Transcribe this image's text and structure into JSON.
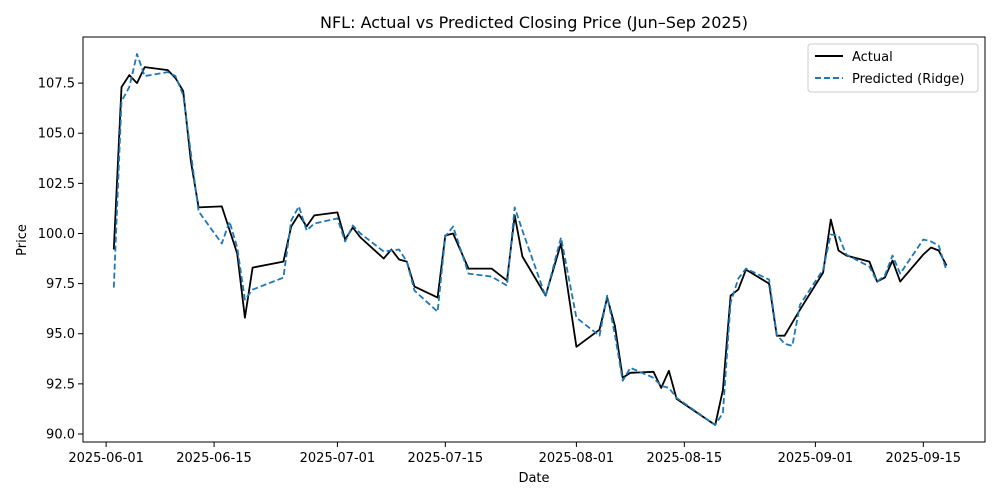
{
  "chart_data": {
    "type": "line",
    "title": "NFL: Actual vs Predicted Closing Price (Jun–Sep 2025)",
    "xlabel": "Date",
    "ylabel": "Price",
    "x_ticks": [
      "2025-06-01",
      "2025-06-15",
      "2025-07-01",
      "2025-07-15",
      "2025-08-01",
      "2025-08-15",
      "2025-09-01",
      "2025-09-15"
    ],
    "y_ticks": [
      "90.0",
      "92.5",
      "95.0",
      "97.5",
      "100.0",
      "102.5",
      "105.0",
      "107.5"
    ],
    "xlim": [
      "2025-05-29",
      "2025-09-23"
    ],
    "ylim": [
      89.6,
      109.8
    ],
    "grid": false,
    "legend_position": "top-right",
    "series": [
      {
        "name": "Actual",
        "color": "#000000",
        "style": "solid",
        "points": [
          [
            "2025-06-02",
            99.2
          ],
          [
            "2025-06-03",
            107.3
          ],
          [
            "2025-06-04",
            107.9
          ],
          [
            "2025-06-05",
            107.5
          ],
          [
            "2025-06-06",
            108.3
          ],
          [
            "2025-06-09",
            108.15
          ],
          [
            "2025-06-10",
            107.75
          ],
          [
            "2025-06-11",
            107.1
          ],
          [
            "2025-06-12",
            103.6
          ],
          [
            "2025-06-13",
            101.3
          ],
          [
            "2025-06-16",
            101.35
          ],
          [
            "2025-06-18",
            99.0
          ],
          [
            "2025-06-19",
            95.8
          ],
          [
            "2025-06-20",
            98.3
          ],
          [
            "2025-06-24",
            98.6
          ],
          [
            "2025-06-25",
            100.35
          ],
          [
            "2025-06-26",
            100.95
          ],
          [
            "2025-06-27",
            100.35
          ],
          [
            "2025-06-28",
            100.9
          ],
          [
            "2025-07-01",
            101.05
          ],
          [
            "2025-07-02",
            99.7
          ],
          [
            "2025-07-03",
            100.3
          ],
          [
            "2025-07-04",
            99.8
          ],
          [
            "2025-07-07",
            98.75
          ],
          [
            "2025-07-08",
            99.2
          ],
          [
            "2025-07-09",
            98.7
          ],
          [
            "2025-07-10",
            98.6
          ],
          [
            "2025-07-11",
            97.35
          ],
          [
            "2025-07-14",
            96.8
          ],
          [
            "2025-07-15",
            99.9
          ],
          [
            "2025-07-16",
            100.0
          ],
          [
            "2025-07-18",
            98.25
          ],
          [
            "2025-07-21",
            98.25
          ],
          [
            "2025-07-23",
            97.65
          ],
          [
            "2025-07-24",
            100.9
          ],
          [
            "2025-07-25",
            98.85
          ],
          [
            "2025-07-28",
            96.9
          ],
          [
            "2025-07-30",
            99.5
          ],
          [
            "2025-08-01",
            94.35
          ],
          [
            "2025-08-04",
            95.2
          ],
          [
            "2025-08-05",
            96.8
          ],
          [
            "2025-08-06",
            95.4
          ],
          [
            "2025-08-07",
            92.8
          ],
          [
            "2025-08-08",
            93.05
          ],
          [
            "2025-08-11",
            93.1
          ],
          [
            "2025-08-12",
            92.3
          ],
          [
            "2025-08-13",
            93.15
          ],
          [
            "2025-08-14",
            91.75
          ],
          [
            "2025-08-19",
            90.45
          ],
          [
            "2025-08-20",
            92.2
          ],
          [
            "2025-08-21",
            96.9
          ],
          [
            "2025-08-22",
            97.2
          ],
          [
            "2025-08-23",
            98.2
          ],
          [
            "2025-08-26",
            97.5
          ],
          [
            "2025-08-27",
            94.9
          ],
          [
            "2025-08-28",
            94.9
          ],
          [
            "2025-08-30",
            96.2
          ],
          [
            "2025-09-02",
            98.05
          ],
          [
            "2025-09-03",
            100.7
          ],
          [
            "2025-09-04",
            99.15
          ],
          [
            "2025-09-05",
            98.9
          ],
          [
            "2025-09-08",
            98.6
          ],
          [
            "2025-09-09",
            97.6
          ],
          [
            "2025-09-10",
            97.8
          ],
          [
            "2025-09-11",
            98.65
          ],
          [
            "2025-09-12",
            97.6
          ],
          [
            "2025-09-15",
            98.95
          ],
          [
            "2025-09-16",
            99.3
          ],
          [
            "2025-09-17",
            99.15
          ],
          [
            "2025-09-18",
            98.4
          ]
        ]
      },
      {
        "name": "Predicted (Ridge)",
        "color": "#1f77b4",
        "style": "dashed",
        "points": [
          [
            "2025-06-02",
            97.3
          ],
          [
            "2025-06-03",
            106.6
          ],
          [
            "2025-06-04",
            107.3
          ],
          [
            "2025-06-05",
            108.95
          ],
          [
            "2025-06-06",
            107.85
          ],
          [
            "2025-06-09",
            108.05
          ],
          [
            "2025-06-10",
            107.85
          ],
          [
            "2025-06-11",
            106.9
          ],
          [
            "2025-06-12",
            104.0
          ],
          [
            "2025-06-13",
            101.1
          ],
          [
            "2025-06-16",
            99.5
          ],
          [
            "2025-06-17",
            100.6
          ],
          [
            "2025-06-18",
            99.3
          ],
          [
            "2025-06-19",
            96.7
          ],
          [
            "2025-06-20",
            97.2
          ],
          [
            "2025-06-24",
            97.8
          ],
          [
            "2025-06-25",
            100.65
          ],
          [
            "2025-06-26",
            101.35
          ],
          [
            "2025-06-27",
            100.15
          ],
          [
            "2025-06-28",
            100.5
          ],
          [
            "2025-07-01",
            100.75
          ],
          [
            "2025-07-02",
            99.6
          ],
          [
            "2025-07-03",
            100.4
          ],
          [
            "2025-07-04",
            100.0
          ],
          [
            "2025-07-07",
            99.1
          ],
          [
            "2025-07-08",
            99.15
          ],
          [
            "2025-07-09",
            99.2
          ],
          [
            "2025-07-10",
            98.6
          ],
          [
            "2025-07-11",
            97.15
          ],
          [
            "2025-07-14",
            96.1
          ],
          [
            "2025-07-15",
            99.85
          ],
          [
            "2025-07-16",
            100.35
          ],
          [
            "2025-07-18",
            98.0
          ],
          [
            "2025-07-21",
            97.85
          ],
          [
            "2025-07-23",
            97.4
          ],
          [
            "2025-07-24",
            101.3
          ],
          [
            "2025-07-25",
            100.15
          ],
          [
            "2025-07-28",
            96.85
          ],
          [
            "2025-07-30",
            99.8
          ],
          [
            "2025-08-01",
            95.8
          ],
          [
            "2025-08-04",
            94.9
          ],
          [
            "2025-08-05",
            96.9
          ],
          [
            "2025-08-06",
            94.95
          ],
          [
            "2025-08-07",
            92.65
          ],
          [
            "2025-08-08",
            93.3
          ],
          [
            "2025-08-11",
            92.8
          ],
          [
            "2025-08-12",
            92.4
          ],
          [
            "2025-08-13",
            92.3
          ],
          [
            "2025-08-14",
            91.8
          ],
          [
            "2025-08-19",
            90.45
          ],
          [
            "2025-08-20",
            91.05
          ],
          [
            "2025-08-21",
            96.55
          ],
          [
            "2025-08-22",
            97.75
          ],
          [
            "2025-08-23",
            98.25
          ],
          [
            "2025-08-26",
            97.7
          ],
          [
            "2025-08-27",
            94.95
          ],
          [
            "2025-08-28",
            94.5
          ],
          [
            "2025-08-29",
            94.4
          ],
          [
            "2025-08-30",
            96.45
          ],
          [
            "2025-09-02",
            98.2
          ],
          [
            "2025-09-03",
            99.95
          ],
          [
            "2025-09-04",
            99.9
          ],
          [
            "2025-09-05",
            98.95
          ],
          [
            "2025-09-08",
            98.35
          ],
          [
            "2025-09-09",
            97.6
          ],
          [
            "2025-09-10",
            97.9
          ],
          [
            "2025-09-11",
            98.9
          ],
          [
            "2025-09-12",
            98.0
          ],
          [
            "2025-09-15",
            99.7
          ],
          [
            "2025-09-16",
            99.6
          ],
          [
            "2025-09-17",
            99.4
          ],
          [
            "2025-09-18",
            98.15
          ]
        ]
      }
    ]
  }
}
